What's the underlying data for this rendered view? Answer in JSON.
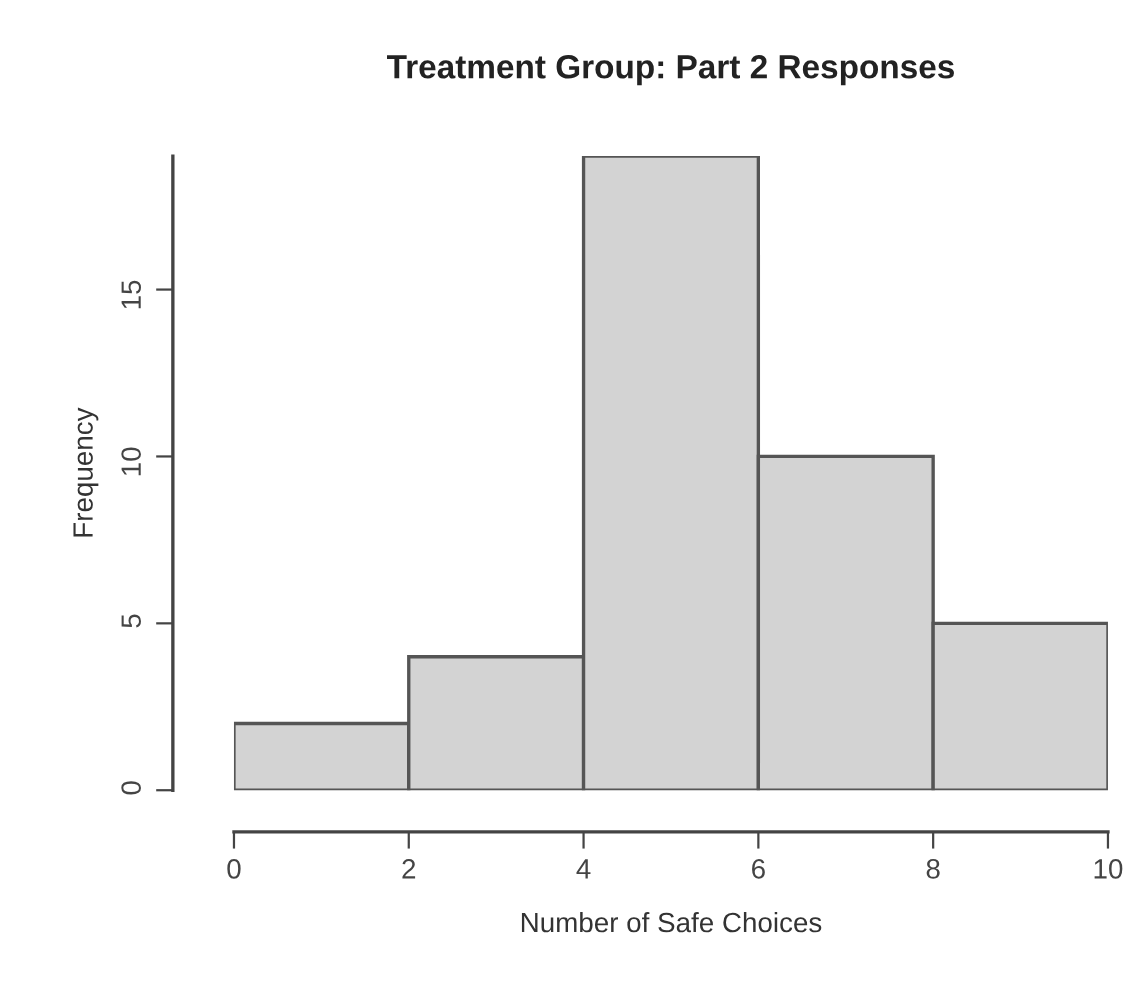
{
  "chart_data": {
    "type": "histogram",
    "title": "Treatment Group: Part 2 Responses",
    "xlabel": "Number of Safe Choices",
    "ylabel": "Frequency",
    "bins": [
      0,
      2,
      4,
      6,
      8,
      10
    ],
    "values": [
      2,
      4,
      19,
      10,
      5
    ],
    "color": "#d3d3d3",
    "xlim": [
      0,
      10
    ],
    "xticks": [
      0,
      2,
      4,
      6,
      8,
      10
    ],
    "ylim": [
      0,
      19
    ],
    "yticks": [
      0,
      5,
      10,
      15
    ],
    "grid": false
  }
}
